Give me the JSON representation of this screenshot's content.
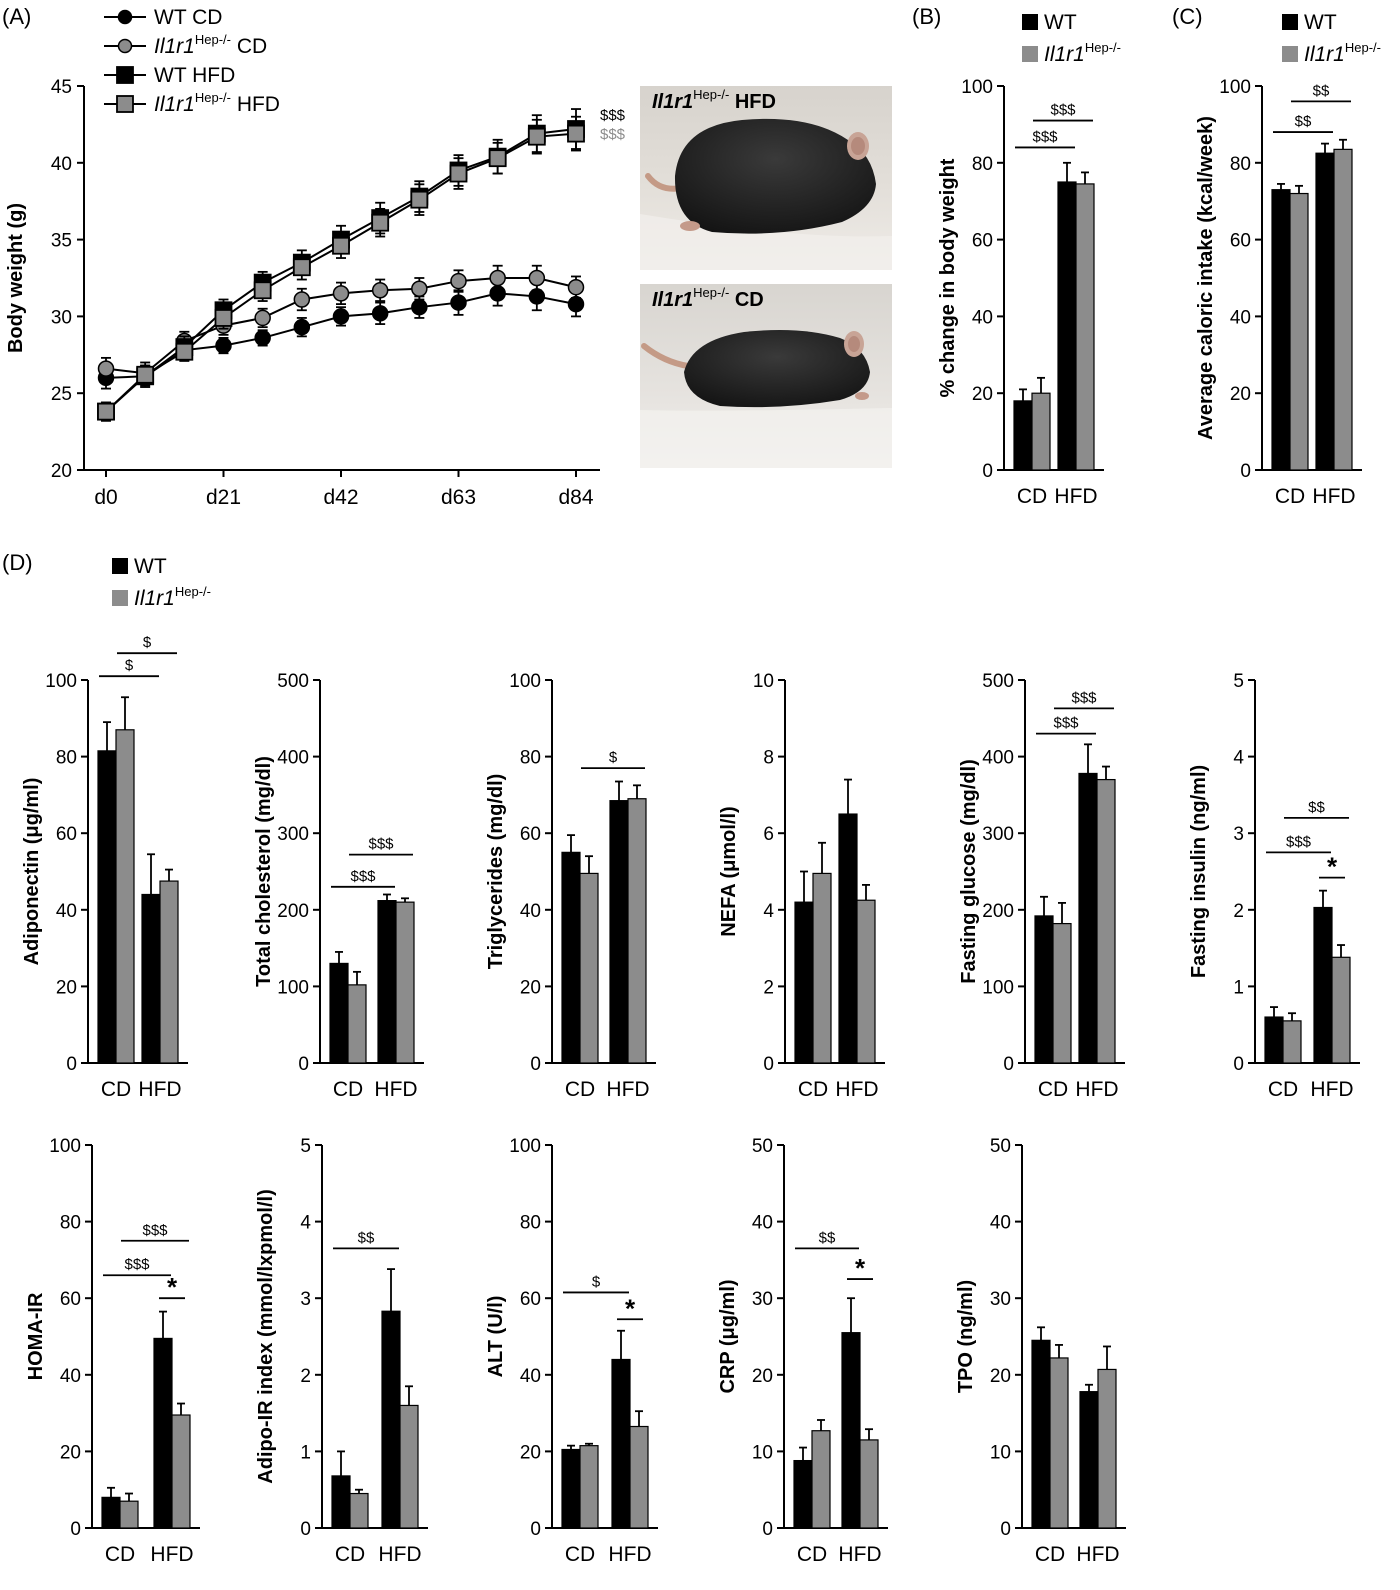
{
  "colors": {
    "wt": "#000000",
    "ko": "#8c8c8c",
    "ko_sig": "#8c8c8c"
  },
  "panel_labels": {
    "A": "(A)",
    "B": "(B)",
    "C": "(C)",
    "D": "(D)"
  },
  "legend_groups": {
    "wt": "WT",
    "ko_base": "Il1r1",
    "ko_sup": "Hep-/-"
  },
  "panelA": {
    "legend": [
      {
        "name": "WT CD",
        "base": "WT",
        "sup": "",
        "suffix": " CD",
        "italic": false,
        "marker": "circle",
        "color": "#000000"
      },
      {
        "name": "Il1r1Hep-/- CD",
        "base": "Il1r1",
        "sup": "Hep-/-",
        "suffix": " CD",
        "italic": true,
        "marker": "circle",
        "color": "#8c8c8c"
      },
      {
        "name": "WT HFD",
        "base": "WT",
        "sup": "",
        "suffix": " HFD",
        "italic": false,
        "marker": "square",
        "color": "#000000"
      },
      {
        "name": "Il1r1Hep-/- HFD",
        "base": "Il1r1",
        "sup": "Hep-/-",
        "suffix": " HFD",
        "italic": true,
        "marker": "square",
        "color": "#8c8c8c"
      }
    ],
    "end_sig": [
      "$$$",
      "$$$"
    ],
    "photo_labels": [
      {
        "base": "Il1r1",
        "sup": "Hep-/-",
        "suffix": " HFD"
      },
      {
        "base": "Il1r1",
        "sup": "Hep-/-",
        "suffix": " CD"
      }
    ]
  },
  "chart_data": [
    {
      "id": "A",
      "type": "line",
      "ylabel": "Body weight (g)",
      "ylim": [
        20,
        45
      ],
      "yticks": [
        20,
        25,
        30,
        35,
        40,
        45
      ],
      "xticks": [
        "d0",
        "d21",
        "d42",
        "d63",
        "d84"
      ],
      "xtick_pos": [
        0,
        21,
        42,
        63,
        84
      ],
      "x": [
        0,
        7,
        14,
        21,
        28,
        35,
        42,
        49,
        56,
        63,
        70,
        77,
        84
      ],
      "series": [
        {
          "name": "WT CD",
          "values": [
            26.0,
            26.1,
            27.8,
            28.1,
            28.6,
            29.3,
            30.0,
            30.2,
            30.6,
            30.9,
            31.5,
            31.3,
            30.8
          ],
          "errors": [
            0.7,
            0.7,
            0.5,
            0.5,
            0.5,
            0.6,
            0.6,
            0.7,
            0.7,
            0.8,
            0.8,
            0.9,
            0.8
          ]
        },
        {
          "name": "Il1r1Hep-/- CD",
          "values": [
            26.6,
            26.3,
            28.4,
            29.4,
            29.9,
            31.1,
            31.5,
            31.7,
            31.8,
            32.3,
            32.5,
            32.5,
            31.9
          ],
          "errors": [
            0.7,
            0.7,
            0.6,
            0.6,
            0.6,
            0.7,
            0.7,
            0.7,
            0.7,
            0.7,
            0.8,
            0.8,
            0.7
          ]
        },
        {
          "name": "WT HFD",
          "values": [
            23.8,
            26.1,
            28.0,
            30.4,
            32.2,
            33.5,
            35.0,
            36.4,
            37.8,
            39.5,
            40.4,
            41.9,
            42.2
          ],
          "errors": [
            0.6,
            0.6,
            0.7,
            0.7,
            0.7,
            0.8,
            0.9,
            1.0,
            1.0,
            1.0,
            1.1,
            1.2,
            1.3
          ]
        },
        {
          "name": "Il1r1Hep-/- HFD",
          "values": [
            23.8,
            26.2,
            27.7,
            29.9,
            31.7,
            33.2,
            34.6,
            36.1,
            37.6,
            39.3,
            40.3,
            41.7,
            41.9
          ],
          "errors": [
            0.5,
            0.6,
            0.6,
            0.7,
            0.7,
            0.8,
            0.8,
            0.9,
            1.0,
            1.0,
            1.0,
            1.1,
            1.1
          ]
        }
      ]
    },
    {
      "id": "B",
      "type": "bar",
      "ylabel": "% change in body weight",
      "ylim": [
        0,
        100
      ],
      "yticks": [
        0,
        20,
        40,
        60,
        80,
        100
      ],
      "categories": [
        "CD",
        "HFD"
      ],
      "series": [
        {
          "name": "WT",
          "values": [
            18,
            75
          ],
          "errors": [
            3,
            5
          ]
        },
        {
          "name": "Il1r1Hep-/-",
          "values": [
            20,
            74.5
          ],
          "errors": [
            4,
            3
          ]
        }
      ],
      "sig": [
        {
          "label": "$$$",
          "from": 0,
          "to": 2,
          "y": 84
        },
        {
          "label": "$$$",
          "from": 1,
          "to": 3,
          "y": 91
        }
      ],
      "star": null
    },
    {
      "id": "C",
      "type": "bar",
      "ylabel": "Average caloric intake (kcal/week)",
      "ylim": [
        0,
        100
      ],
      "yticks": [
        0,
        20,
        40,
        60,
        80,
        100
      ],
      "categories": [
        "CD",
        "HFD"
      ],
      "series": [
        {
          "name": "WT",
          "values": [
            73,
            82.5
          ],
          "errors": [
            1.5,
            2.5
          ]
        },
        {
          "name": "Il1r1Hep-/-",
          "values": [
            72,
            83.5
          ],
          "errors": [
            2,
            2.5
          ]
        }
      ],
      "sig": [
        {
          "label": "$$",
          "from": 0,
          "to": 2,
          "y": 88
        },
        {
          "label": "$$",
          "from": 1,
          "to": 3,
          "y": 96
        }
      ],
      "star": null
    },
    {
      "id": "adiponectin",
      "type": "bar",
      "ylabel": "Adiponectin (μg/ml)",
      "ylim": [
        0,
        100
      ],
      "yticks": [
        0,
        20,
        40,
        60,
        80,
        100
      ],
      "categories": [
        "CD",
        "HFD"
      ],
      "series": [
        {
          "name": "WT",
          "values": [
            81.5,
            44
          ],
          "errors": [
            7.5,
            10.5
          ]
        },
        {
          "name": "Il1r1Hep-/-",
          "values": [
            87,
            47.5
          ],
          "errors": [
            8.5,
            3
          ]
        }
      ],
      "sig": [
        {
          "label": "$",
          "from": 0,
          "to": 2,
          "y": 101
        },
        {
          "label": "$",
          "from": 1,
          "to": 3,
          "y": 107
        }
      ],
      "star": null
    },
    {
      "id": "cholesterol",
      "type": "bar",
      "ylabel": "Total cholesterol (mg/dl)",
      "ylim": [
        0,
        500
      ],
      "yticks": [
        0,
        100,
        200,
        300,
        400,
        500
      ],
      "categories": [
        "CD",
        "HFD"
      ],
      "series": [
        {
          "name": "WT",
          "values": [
            130,
            212
          ],
          "errors": [
            15,
            8
          ]
        },
        {
          "name": "Il1r1Hep-/-",
          "values": [
            102,
            210
          ],
          "errors": [
            17,
            5
          ]
        }
      ],
      "sig": [
        {
          "label": "$$$",
          "from": 0,
          "to": 2,
          "y": 230
        },
        {
          "label": "$$$",
          "from": 1,
          "to": 3,
          "y": 272
        }
      ],
      "star": null
    },
    {
      "id": "triglycerides",
      "type": "bar",
      "ylabel": "Triglycerides (mg/dl)",
      "ylim": [
        0,
        100
      ],
      "yticks": [
        0,
        20,
        40,
        60,
        80,
        100
      ],
      "categories": [
        "CD",
        "HFD"
      ],
      "series": [
        {
          "name": "WT",
          "values": [
            55,
            68.5
          ],
          "errors": [
            4.5,
            5
          ]
        },
        {
          "name": "Il1r1Hep-/-",
          "values": [
            49.5,
            69
          ],
          "errors": [
            4.5,
            3.5
          ]
        }
      ],
      "sig": [
        {
          "label": "$",
          "from": 1,
          "to": 3,
          "y": 77
        }
      ],
      "star": null
    },
    {
      "id": "nefa",
      "type": "bar",
      "ylabel": "NEFA (μmol/l)",
      "ylim": [
        0,
        10
      ],
      "yticks": [
        0,
        2,
        4,
        6,
        8,
        10
      ],
      "categories": [
        "CD",
        "HFD"
      ],
      "series": [
        {
          "name": "WT",
          "values": [
            4.2,
            6.5
          ],
          "errors": [
            0.8,
            0.9
          ]
        },
        {
          "name": "Il1r1Hep-/-",
          "values": [
            4.95,
            4.25
          ],
          "errors": [
            0.8,
            0.4
          ]
        }
      ],
      "sig": [],
      "star": null
    },
    {
      "id": "glucose",
      "type": "bar",
      "ylabel": "Fasting glucose (mg/dl)",
      "ylim": [
        0,
        500
      ],
      "yticks": [
        0,
        100,
        200,
        300,
        400,
        500
      ],
      "categories": [
        "CD",
        "HFD"
      ],
      "series": [
        {
          "name": "WT",
          "values": [
            192,
            378
          ],
          "errors": [
            25,
            38
          ]
        },
        {
          "name": "Il1r1Hep-/-",
          "values": [
            182,
            370
          ],
          "errors": [
            27,
            17
          ]
        }
      ],
      "sig": [
        {
          "label": "$$$",
          "from": 0,
          "to": 2,
          "y": 430
        },
        {
          "label": "$$$",
          "from": 1,
          "to": 3,
          "y": 463
        }
      ],
      "star": null
    },
    {
      "id": "insulin",
      "type": "bar",
      "ylabel": "Fasting insulin (ng/ml)",
      "ylim": [
        0,
        5
      ],
      "yticks": [
        0,
        1,
        2,
        3,
        4,
        5
      ],
      "categories": [
        "CD",
        "HFD"
      ],
      "series": [
        {
          "name": "WT",
          "values": [
            0.6,
            2.03
          ],
          "errors": [
            0.13,
            0.22
          ]
        },
        {
          "name": "Il1r1Hep-/-",
          "values": [
            0.55,
            1.38
          ],
          "errors": [
            0.1,
            0.16
          ]
        }
      ],
      "sig": [
        {
          "label": "$$$",
          "from": 0,
          "to": 2,
          "y": 2.75
        },
        {
          "label": "$$",
          "from": 1,
          "to": 3,
          "y": 3.2
        }
      ],
      "star": {
        "label": "*",
        "from": 2,
        "to": 3,
        "y": 2.42
      }
    },
    {
      "id": "homa",
      "type": "bar",
      "ylabel": "HOMA-IR",
      "ylim": [
        0,
        100
      ],
      "yticks": [
        0,
        20,
        40,
        60,
        80,
        100
      ],
      "categories": [
        "CD",
        "HFD"
      ],
      "series": [
        {
          "name": "WT",
          "values": [
            8,
            49.5
          ],
          "errors": [
            2.5,
            7
          ]
        },
        {
          "name": "Il1r1Hep-/-",
          "values": [
            7,
            29.5
          ],
          "errors": [
            2,
            3
          ]
        }
      ],
      "sig": [
        {
          "label": "$$$",
          "from": 0,
          "to": 2,
          "y": 66
        },
        {
          "label": "$$$",
          "from": 1,
          "to": 3,
          "y": 75
        }
      ],
      "star": {
        "label": "*",
        "from": 2,
        "to": 3,
        "y": 60
      }
    },
    {
      "id": "adipoir",
      "type": "bar",
      "ylabel": "Adipo-IR index (mmol/lxpmol/l)",
      "ylim": [
        0,
        5
      ],
      "yticks": [
        0,
        1,
        2,
        3,
        4,
        5
      ],
      "categories": [
        "CD",
        "HFD"
      ],
      "series": [
        {
          "name": "WT",
          "values": [
            0.68,
            2.83
          ],
          "errors": [
            0.32,
            0.55
          ]
        },
        {
          "name": "Il1r1Hep-/-",
          "values": [
            0.45,
            1.6
          ],
          "errors": [
            0.05,
            0.25
          ]
        }
      ],
      "sig": [
        {
          "label": "$$",
          "from": 0,
          "to": 2,
          "y": 3.65
        }
      ],
      "star": null
    },
    {
      "id": "alt",
      "type": "bar",
      "ylabel": "ALT (U/l)",
      "ylim": [
        0,
        100
      ],
      "yticks": [
        0,
        20,
        40,
        60,
        80,
        100
      ],
      "categories": [
        "CD",
        "HFD"
      ],
      "series": [
        {
          "name": "WT",
          "values": [
            20.5,
            44
          ],
          "errors": [
            1,
            7.5
          ]
        },
        {
          "name": "Il1r1Hep-/-",
          "values": [
            21.5,
            26.5
          ],
          "errors": [
            0.5,
            4
          ]
        }
      ],
      "sig": [
        {
          "label": "$",
          "from": 0,
          "to": 2,
          "y": 61.5
        }
      ],
      "star": {
        "label": "*",
        "from": 2,
        "to": 3,
        "y": 54.5
      }
    },
    {
      "id": "crp",
      "type": "bar",
      "ylabel": "CRP (μg/ml)",
      "ylim": [
        0,
        50
      ],
      "yticks": [
        0,
        10,
        20,
        30,
        40,
        50
      ],
      "categories": [
        "CD",
        "HFD"
      ],
      "series": [
        {
          "name": "WT",
          "values": [
            8.8,
            25.5
          ],
          "errors": [
            1.7,
            4.5
          ]
        },
        {
          "name": "Il1r1Hep-/-",
          "values": [
            12.7,
            11.5
          ],
          "errors": [
            1.4,
            1.4
          ]
        }
      ],
      "sig": [
        {
          "label": "$$",
          "from": 0,
          "to": 2,
          "y": 36.5
        }
      ],
      "star": {
        "label": "*",
        "from": 2,
        "to": 3,
        "y": 32.5
      }
    },
    {
      "id": "tpo",
      "type": "bar",
      "ylabel": "TPO (ng/ml)",
      "ylim": [
        0,
        50
      ],
      "yticks": [
        0,
        10,
        20,
        30,
        40,
        50
      ],
      "categories": [
        "CD",
        "HFD"
      ],
      "series": [
        {
          "name": "WT",
          "values": [
            24.5,
            17.8
          ],
          "errors": [
            1.7,
            0.9
          ]
        },
        {
          "name": "Il1r1Hep-/-",
          "values": [
            22.2,
            20.7
          ],
          "errors": [
            1.7,
            3
          ]
        }
      ],
      "sig": [],
      "star": null
    }
  ]
}
